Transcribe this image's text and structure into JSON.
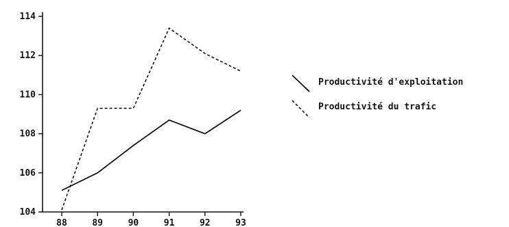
{
  "chart_data": {
    "type": "line",
    "title": "",
    "xlabel": "",
    "ylabel": "",
    "x": [
      "88",
      "89",
      "90",
      "91",
      "92",
      "93"
    ],
    "ylim": [
      104,
      114
    ],
    "yticks": [
      104,
      106,
      108,
      110,
      112,
      114
    ],
    "grid": false,
    "legend_position": "right",
    "series": [
      {
        "name": "Productivité d'exploitation",
        "style": "solid",
        "color": "#111111",
        "values": [
          105.1,
          106.0,
          107.4,
          108.7,
          108.0,
          109.2
        ]
      },
      {
        "name": "Productivité du trafic",
        "style": "dashed",
        "color": "#111111",
        "values": [
          104.1,
          109.3,
          109.3,
          113.4,
          112.1,
          111.2
        ]
      }
    ]
  }
}
